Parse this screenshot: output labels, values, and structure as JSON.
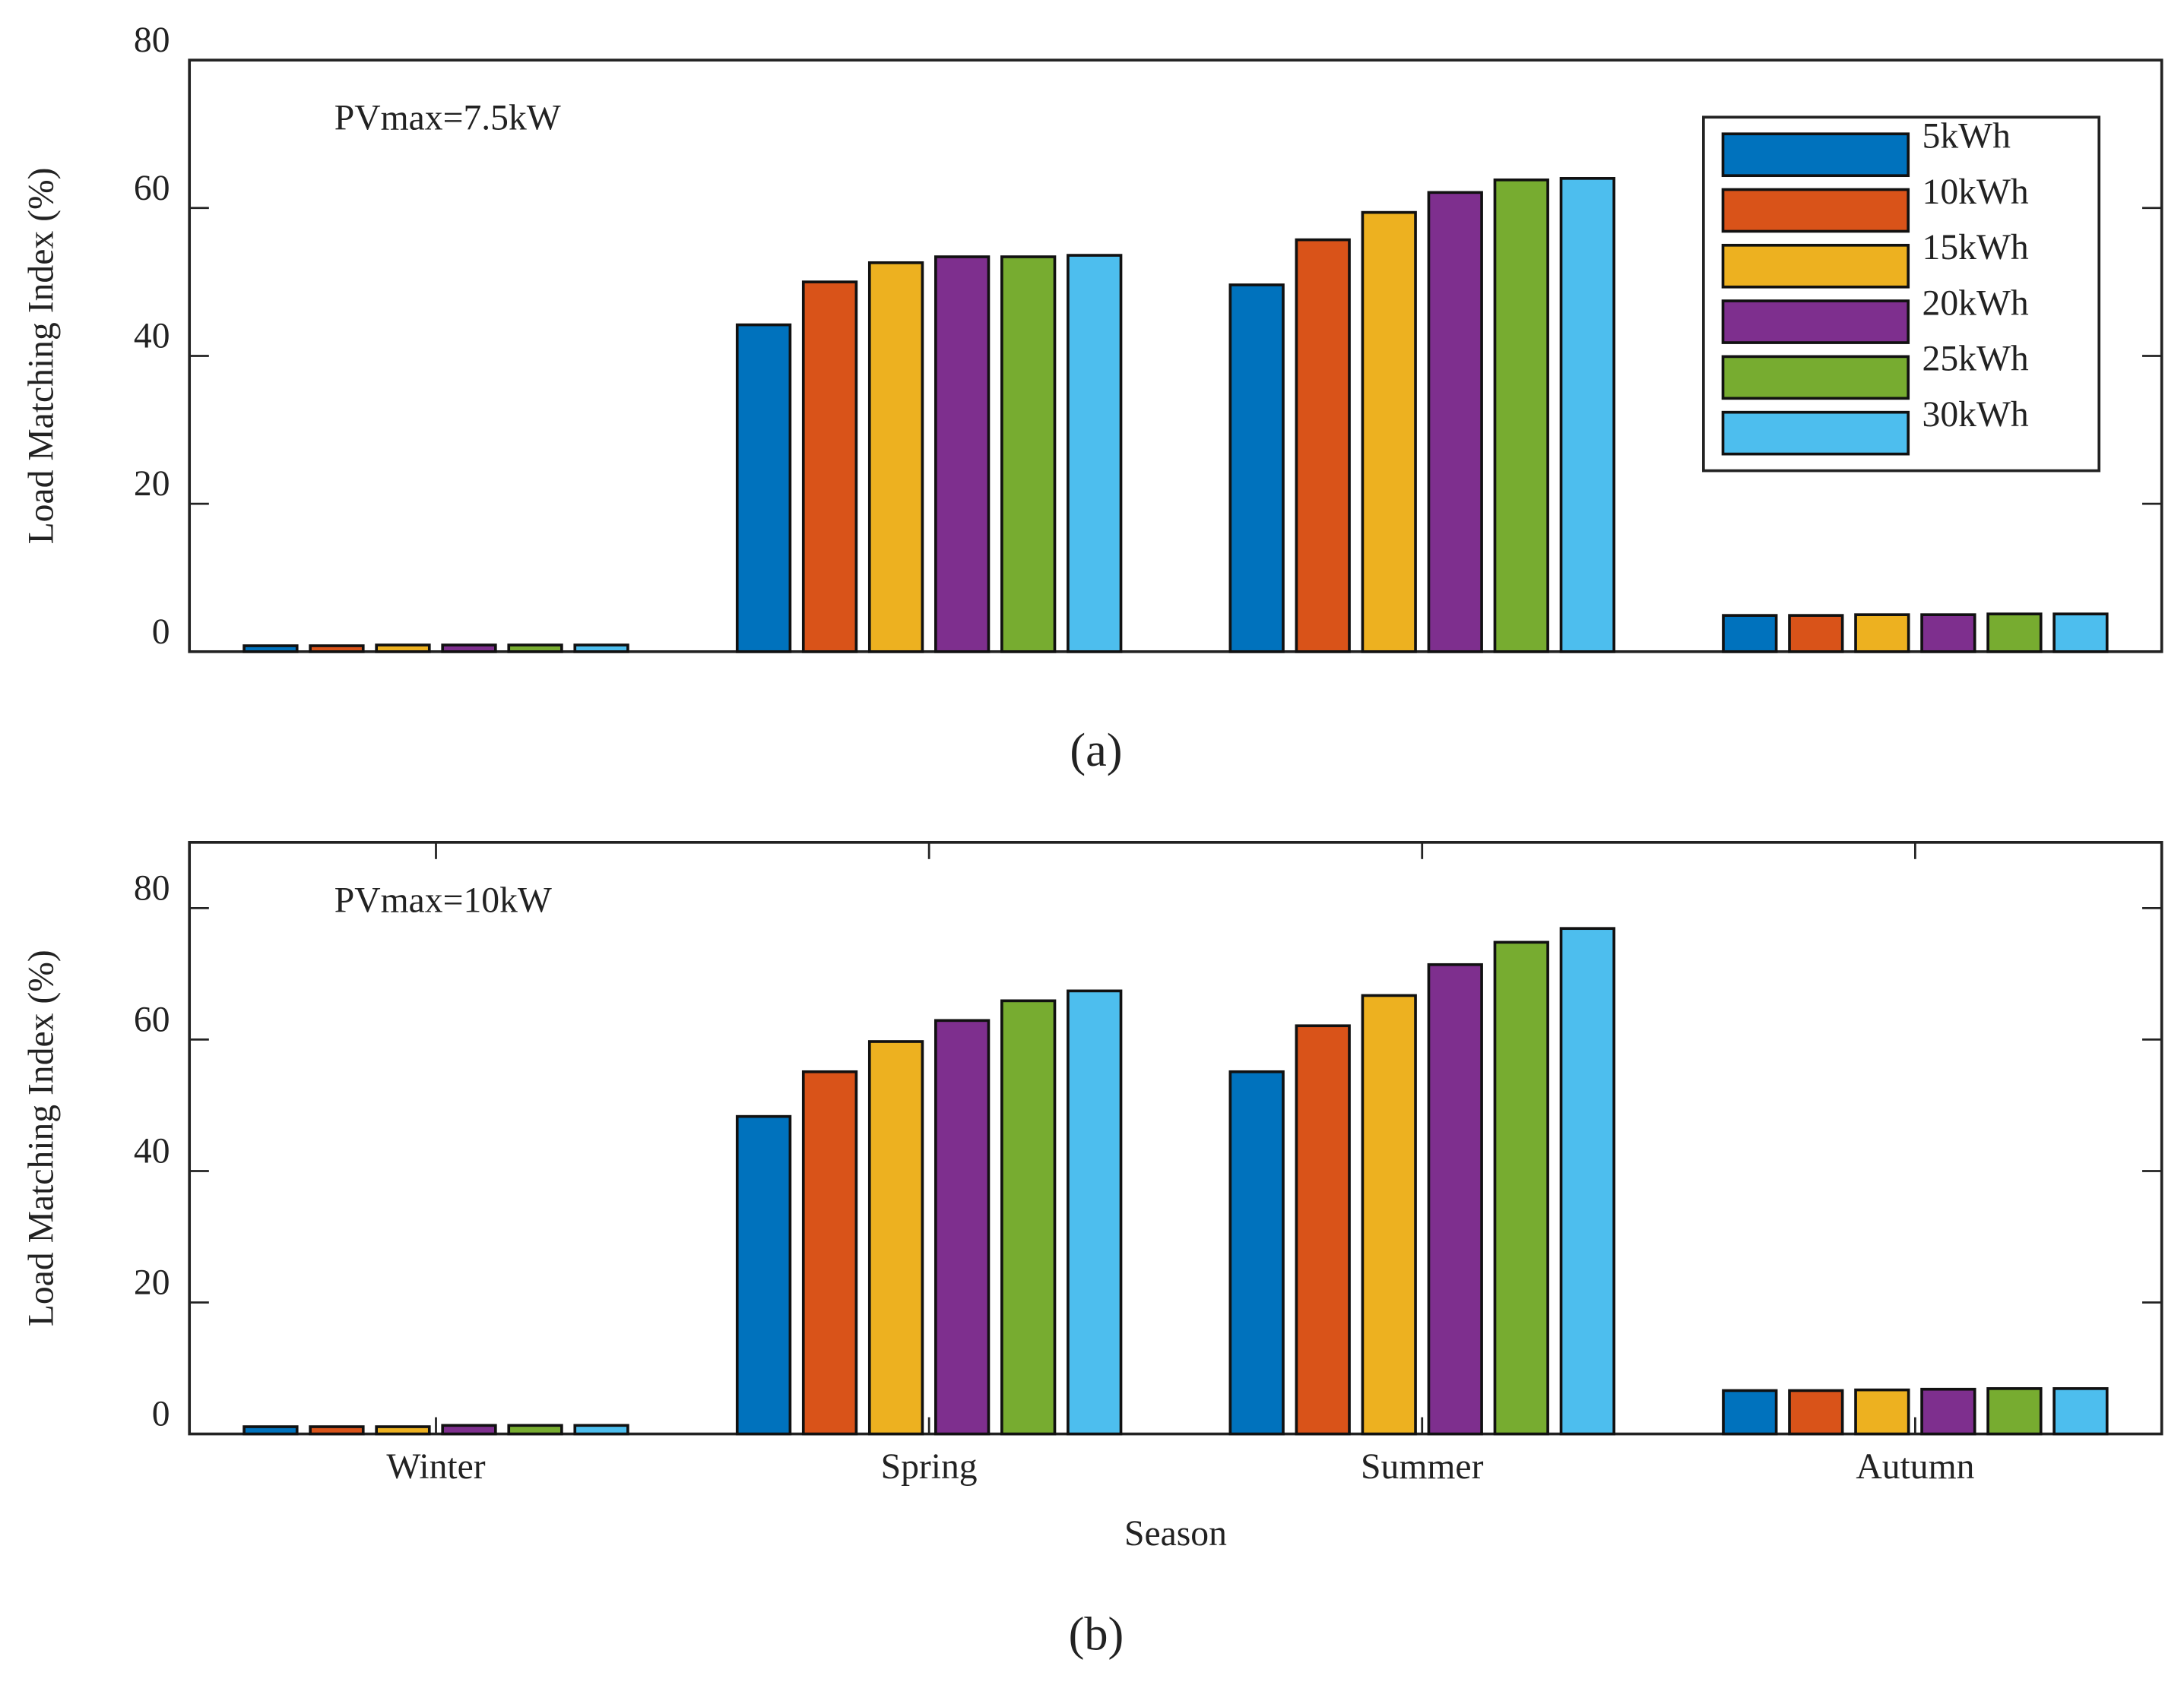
{
  "chart_data": [
    {
      "type": "bar",
      "annotation": "PVmax=7.5kW",
      "panel_label": "(a)",
      "ylabel": "Load Matching Index (%)",
      "categories": [
        null,
        null,
        null,
        null
      ],
      "series": [
        {
          "name": "5kWh",
          "color": "#0072bd",
          "values": [
            0.8,
            44.2,
            49.6,
            4.9
          ]
        },
        {
          "name": "10kWh",
          "color": "#d95319",
          "values": [
            0.8,
            50,
            55.7,
            4.9
          ]
        },
        {
          "name": "15kWh",
          "color": "#edb120",
          "values": [
            0.9,
            52.6,
            59.4,
            5
          ]
        },
        {
          "name": "20kWh",
          "color": "#7e2f8e",
          "values": [
            0.9,
            53.4,
            62.1,
            5
          ]
        },
        {
          "name": "25kWh",
          "color": "#77ac30",
          "values": [
            0.9,
            53.4,
            63.8,
            5.1
          ]
        },
        {
          "name": "30kWh",
          "color": "#4dbeee",
          "values": [
            0.9,
            53.6,
            64,
            5.1
          ]
        }
      ],
      "ylim": [
        0,
        80
      ],
      "yticks": [
        0,
        20,
        40,
        60,
        80
      ],
      "legend": "northeast"
    },
    {
      "type": "bar",
      "annotation": "PVmax=10kW",
      "panel_label": "(b)",
      "ylabel": "Load Matching Index (%)",
      "xlabel": "Season",
      "categories": [
        "Winter",
        "Spring",
        "Summer",
        "Autumn"
      ],
      "series": [
        {
          "name": "5kWh",
          "color": "#0072bd",
          "values": [
            1.1,
            48.3,
            55.1,
            6.6
          ]
        },
        {
          "name": "10kWh",
          "color": "#d95319",
          "values": [
            1.1,
            55.1,
            62.1,
            6.6
          ]
        },
        {
          "name": "15kWh",
          "color": "#edb120",
          "values": [
            1.1,
            59.7,
            66.7,
            6.7
          ]
        },
        {
          "name": "20kWh",
          "color": "#7e2f8e",
          "values": [
            1.3,
            62.9,
            71.4,
            6.8
          ]
        },
        {
          "name": "25kWh",
          "color": "#77ac30",
          "values": [
            1.3,
            65.9,
            74.8,
            6.9
          ]
        },
        {
          "name": "30kWh",
          "color": "#4dbeee",
          "values": [
            1.3,
            67.4,
            76.9,
            6.9
          ]
        }
      ],
      "ylim": [
        0,
        90
      ],
      "yticks": [
        0,
        20,
        40,
        60,
        80
      ]
    }
  ]
}
